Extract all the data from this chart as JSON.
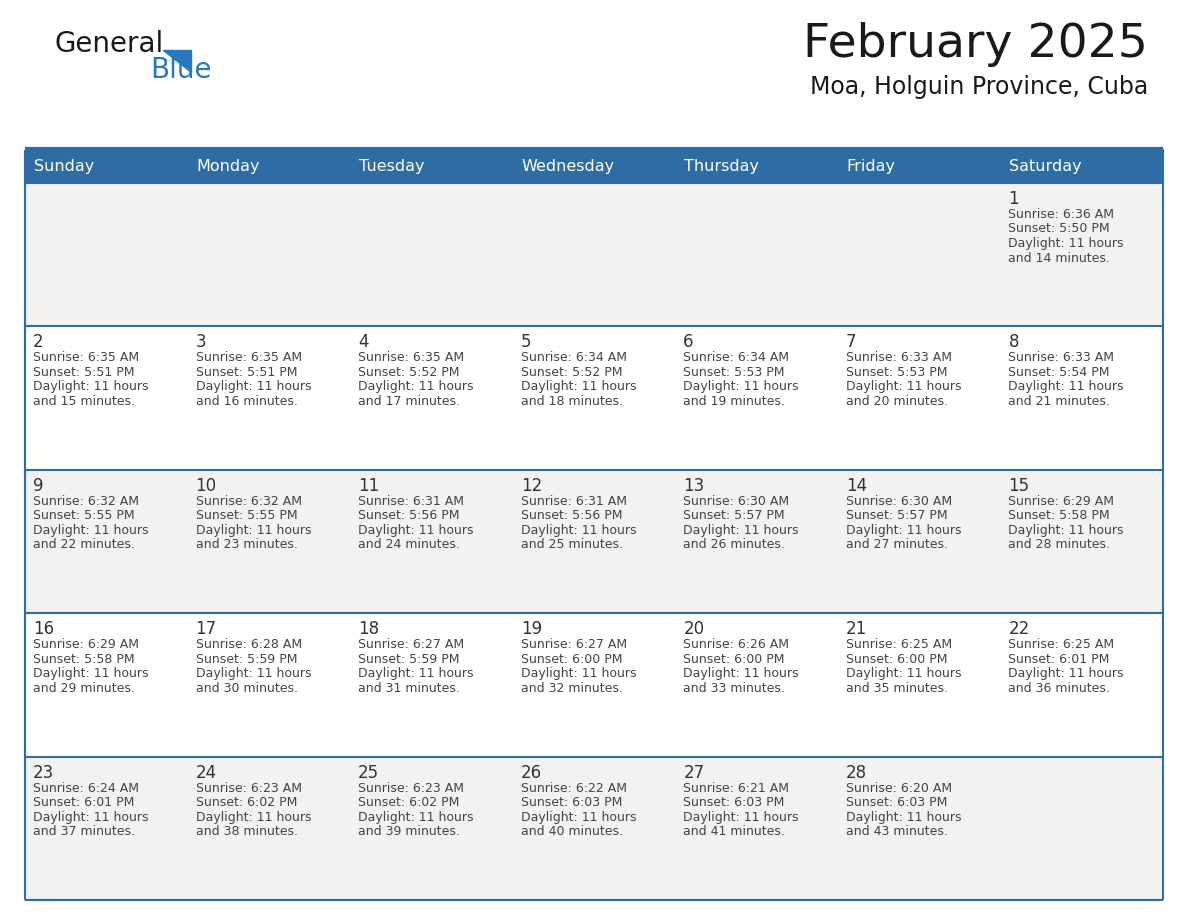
{
  "title": "February 2025",
  "subtitle": "Moa, Holguin Province, Cuba",
  "days_of_week": [
    "Sunday",
    "Monday",
    "Tuesday",
    "Wednesday",
    "Thursday",
    "Friday",
    "Saturday"
  ],
  "header_bg": "#2E6DA4",
  "header_text_color": "#FFFFFF",
  "cell_bg_white": "#FFFFFF",
  "cell_bg_gray": "#F2F2F2",
  "row_bg_pattern": [
    "#F2F2F2",
    "#FFFFFF",
    "#F2F2F2",
    "#FFFFFF",
    "#F2F2F2"
  ],
  "border_color": "#2E6DA4",
  "separator_color": "#2E6DA4",
  "text_color": "#444444",
  "day_number_color": "#333333",
  "title_color": "#1a1a1a",
  "subtitle_color": "#1a1a1a",
  "logo_color_general": "#1a1a1a",
  "logo_color_blue": "#2779BD",
  "logo_triangle_color": "#2779BD",
  "calendar_data": [
    [
      null,
      null,
      null,
      null,
      null,
      null,
      {
        "day": 1,
        "sunrise": "6:36 AM",
        "sunset": "5:50 PM",
        "daylight_l1": "Daylight: 11 hours",
        "daylight_l2": "and 14 minutes."
      }
    ],
    [
      {
        "day": 2,
        "sunrise": "6:35 AM",
        "sunset": "5:51 PM",
        "daylight_l1": "Daylight: 11 hours",
        "daylight_l2": "and 15 minutes."
      },
      {
        "day": 3,
        "sunrise": "6:35 AM",
        "sunset": "5:51 PM",
        "daylight_l1": "Daylight: 11 hours",
        "daylight_l2": "and 16 minutes."
      },
      {
        "day": 4,
        "sunrise": "6:35 AM",
        "sunset": "5:52 PM",
        "daylight_l1": "Daylight: 11 hours",
        "daylight_l2": "and 17 minutes."
      },
      {
        "day": 5,
        "sunrise": "6:34 AM",
        "sunset": "5:52 PM",
        "daylight_l1": "Daylight: 11 hours",
        "daylight_l2": "and 18 minutes."
      },
      {
        "day": 6,
        "sunrise": "6:34 AM",
        "sunset": "5:53 PM",
        "daylight_l1": "Daylight: 11 hours",
        "daylight_l2": "and 19 minutes."
      },
      {
        "day": 7,
        "sunrise": "6:33 AM",
        "sunset": "5:53 PM",
        "daylight_l1": "Daylight: 11 hours",
        "daylight_l2": "and 20 minutes."
      },
      {
        "day": 8,
        "sunrise": "6:33 AM",
        "sunset": "5:54 PM",
        "daylight_l1": "Daylight: 11 hours",
        "daylight_l2": "and 21 minutes."
      }
    ],
    [
      {
        "day": 9,
        "sunrise": "6:32 AM",
        "sunset": "5:55 PM",
        "daylight_l1": "Daylight: 11 hours",
        "daylight_l2": "and 22 minutes."
      },
      {
        "day": 10,
        "sunrise": "6:32 AM",
        "sunset": "5:55 PM",
        "daylight_l1": "Daylight: 11 hours",
        "daylight_l2": "and 23 minutes."
      },
      {
        "day": 11,
        "sunrise": "6:31 AM",
        "sunset": "5:56 PM",
        "daylight_l1": "Daylight: 11 hours",
        "daylight_l2": "and 24 minutes."
      },
      {
        "day": 12,
        "sunrise": "6:31 AM",
        "sunset": "5:56 PM",
        "daylight_l1": "Daylight: 11 hours",
        "daylight_l2": "and 25 minutes."
      },
      {
        "day": 13,
        "sunrise": "6:30 AM",
        "sunset": "5:57 PM",
        "daylight_l1": "Daylight: 11 hours",
        "daylight_l2": "and 26 minutes."
      },
      {
        "day": 14,
        "sunrise": "6:30 AM",
        "sunset": "5:57 PM",
        "daylight_l1": "Daylight: 11 hours",
        "daylight_l2": "and 27 minutes."
      },
      {
        "day": 15,
        "sunrise": "6:29 AM",
        "sunset": "5:58 PM",
        "daylight_l1": "Daylight: 11 hours",
        "daylight_l2": "and 28 minutes."
      }
    ],
    [
      {
        "day": 16,
        "sunrise": "6:29 AM",
        "sunset": "5:58 PM",
        "daylight_l1": "Daylight: 11 hours",
        "daylight_l2": "and 29 minutes."
      },
      {
        "day": 17,
        "sunrise": "6:28 AM",
        "sunset": "5:59 PM",
        "daylight_l1": "Daylight: 11 hours",
        "daylight_l2": "and 30 minutes."
      },
      {
        "day": 18,
        "sunrise": "6:27 AM",
        "sunset": "5:59 PM",
        "daylight_l1": "Daylight: 11 hours",
        "daylight_l2": "and 31 minutes."
      },
      {
        "day": 19,
        "sunrise": "6:27 AM",
        "sunset": "6:00 PM",
        "daylight_l1": "Daylight: 11 hours",
        "daylight_l2": "and 32 minutes."
      },
      {
        "day": 20,
        "sunrise": "6:26 AM",
        "sunset": "6:00 PM",
        "daylight_l1": "Daylight: 11 hours",
        "daylight_l2": "and 33 minutes."
      },
      {
        "day": 21,
        "sunrise": "6:25 AM",
        "sunset": "6:00 PM",
        "daylight_l1": "Daylight: 11 hours",
        "daylight_l2": "and 35 minutes."
      },
      {
        "day": 22,
        "sunrise": "6:25 AM",
        "sunset": "6:01 PM",
        "daylight_l1": "Daylight: 11 hours",
        "daylight_l2": "and 36 minutes."
      }
    ],
    [
      {
        "day": 23,
        "sunrise": "6:24 AM",
        "sunset": "6:01 PM",
        "daylight_l1": "Daylight: 11 hours",
        "daylight_l2": "and 37 minutes."
      },
      {
        "day": 24,
        "sunrise": "6:23 AM",
        "sunset": "6:02 PM",
        "daylight_l1": "Daylight: 11 hours",
        "daylight_l2": "and 38 minutes."
      },
      {
        "day": 25,
        "sunrise": "6:23 AM",
        "sunset": "6:02 PM",
        "daylight_l1": "Daylight: 11 hours",
        "daylight_l2": "and 39 minutes."
      },
      {
        "day": 26,
        "sunrise": "6:22 AM",
        "sunset": "6:03 PM",
        "daylight_l1": "Daylight: 11 hours",
        "daylight_l2": "and 40 minutes."
      },
      {
        "day": 27,
        "sunrise": "6:21 AM",
        "sunset": "6:03 PM",
        "daylight_l1": "Daylight: 11 hours",
        "daylight_l2": "and 41 minutes."
      },
      {
        "day": 28,
        "sunrise": "6:20 AM",
        "sunset": "6:03 PM",
        "daylight_l1": "Daylight: 11 hours",
        "daylight_l2": "and 43 minutes."
      },
      null
    ]
  ]
}
